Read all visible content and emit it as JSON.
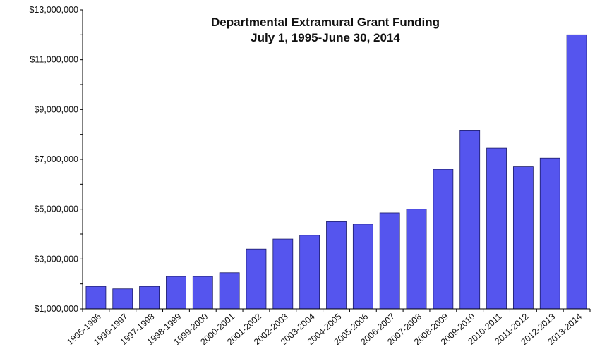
{
  "chart_data": {
    "type": "bar",
    "title": [
      "Departmental Extramural Grant Funding",
      "July 1, 1995-June 30, 2014"
    ],
    "xlabel": "",
    "ylabel": "",
    "ylim": [
      1000000,
      13000000
    ],
    "yticks": [
      1000000,
      3000000,
      5000000,
      7000000,
      9000000,
      11000000,
      13000000
    ],
    "ytick_labels": [
      "$1,000,000",
      "$3,000,000",
      "$5,000,000",
      "$7,000,000",
      "$9,000,000",
      "$11,000,000",
      "$13,000,000"
    ],
    "categories": [
      "1995-1996",
      "1996-1997",
      "1997-1998",
      "1998-1999",
      "1999-2000",
      "2000-2001",
      "2001-2002",
      "2002-2003",
      "2003-2004",
      "2004-2005",
      "2005-2006",
      "2006-2007",
      "2007-2008",
      "2008-2009",
      "2009-2010",
      "2010-2011",
      "2011-2012",
      "2012-2013",
      "2013-2014"
    ],
    "values": [
      1900000,
      1800000,
      1900000,
      2300000,
      2300000,
      2450000,
      3400000,
      3800000,
      3950000,
      4500000,
      4400000,
      4850000,
      5000000,
      6600000,
      8150000,
      7450000,
      6700000,
      7050000,
      12000000
    ],
    "grid": false,
    "legend": "none",
    "bar_color": "#5555ee",
    "bar_edge_color": "#1a1a66"
  }
}
